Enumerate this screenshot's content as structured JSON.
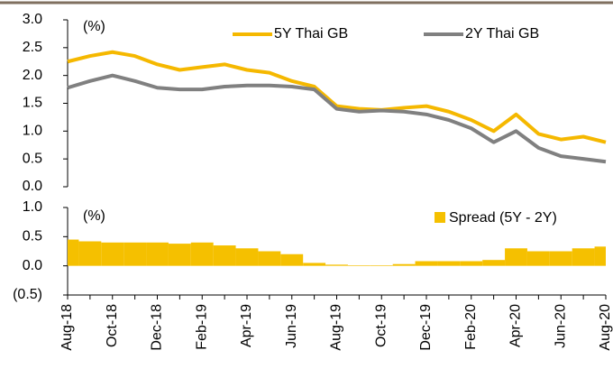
{
  "chart_data": [
    {
      "type": "line",
      "y_unit": "(%)",
      "ylim": [
        0,
        3
      ],
      "yticks": [
        {
          "value": 0,
          "label": "0.0"
        },
        0.5,
        {
          "value": 1,
          "label": "1.0"
        },
        1.5,
        {
          "value": 2,
          "label": "2.0"
        },
        2.5,
        {
          "value": 3,
          "label": "3.0"
        }
      ],
      "series": [
        {
          "name": "5Y Thai GB",
          "color": "#f5b800",
          "values": [
            2.25,
            2.35,
            2.42,
            2.35,
            2.2,
            2.1,
            2.15,
            2.2,
            2.1,
            2.05,
            1.9,
            1.8,
            1.45,
            1.4,
            1.38,
            1.42,
            1.45,
            1.35,
            1.2,
            1.0,
            1.3,
            0.95,
            0.85,
            0.9,
            0.8
          ]
        },
        {
          "name": "2Y Thai GB",
          "color": "#808080",
          "values": [
            1.78,
            1.9,
            2.0,
            1.9,
            1.78,
            1.75,
            1.75,
            1.8,
            1.82,
            1.82,
            1.8,
            1.75,
            1.4,
            1.35,
            1.37,
            1.35,
            1.3,
            1.2,
            1.05,
            0.8,
            1.0,
            0.7,
            0.55,
            0.5,
            0.45
          ]
        }
      ]
    },
    {
      "type": "bar",
      "y_unit": "(%)",
      "categories": [
        "Aug-18",
        null,
        "Oct-18",
        null,
        "Dec-18",
        null,
        "Feb-19",
        null,
        "Apr-19",
        null,
        "Jun-19",
        null,
        "Aug-19",
        null,
        "Oct-19",
        null,
        "Dec-19",
        null,
        "Feb-20",
        null,
        "Apr-20",
        null,
        "Jun-20",
        null,
        "Aug-20"
      ],
      "ylim": [
        -0.5,
        1
      ],
      "yticks": [
        {
          "value": -0.5,
          "label": "(0.5)"
        },
        {
          "value": 0,
          "label": "0.0"
        },
        0.5,
        {
          "value": 1,
          "label": "1.0"
        }
      ],
      "series": [
        {
          "name": "Spread (5Y - 2Y)",
          "color": "#f5c000",
          "values": [
            0.45,
            0.42,
            0.4,
            0.4,
            0.4,
            0.38,
            0.4,
            0.35,
            0.3,
            0.25,
            0.2,
            0.05,
            0.02,
            0.01,
            0.01,
            0.03,
            0.08,
            0.08,
            0.08,
            0.1,
            0.3,
            0.25,
            0.25,
            0.3,
            0.33
          ]
        }
      ]
    }
  ]
}
